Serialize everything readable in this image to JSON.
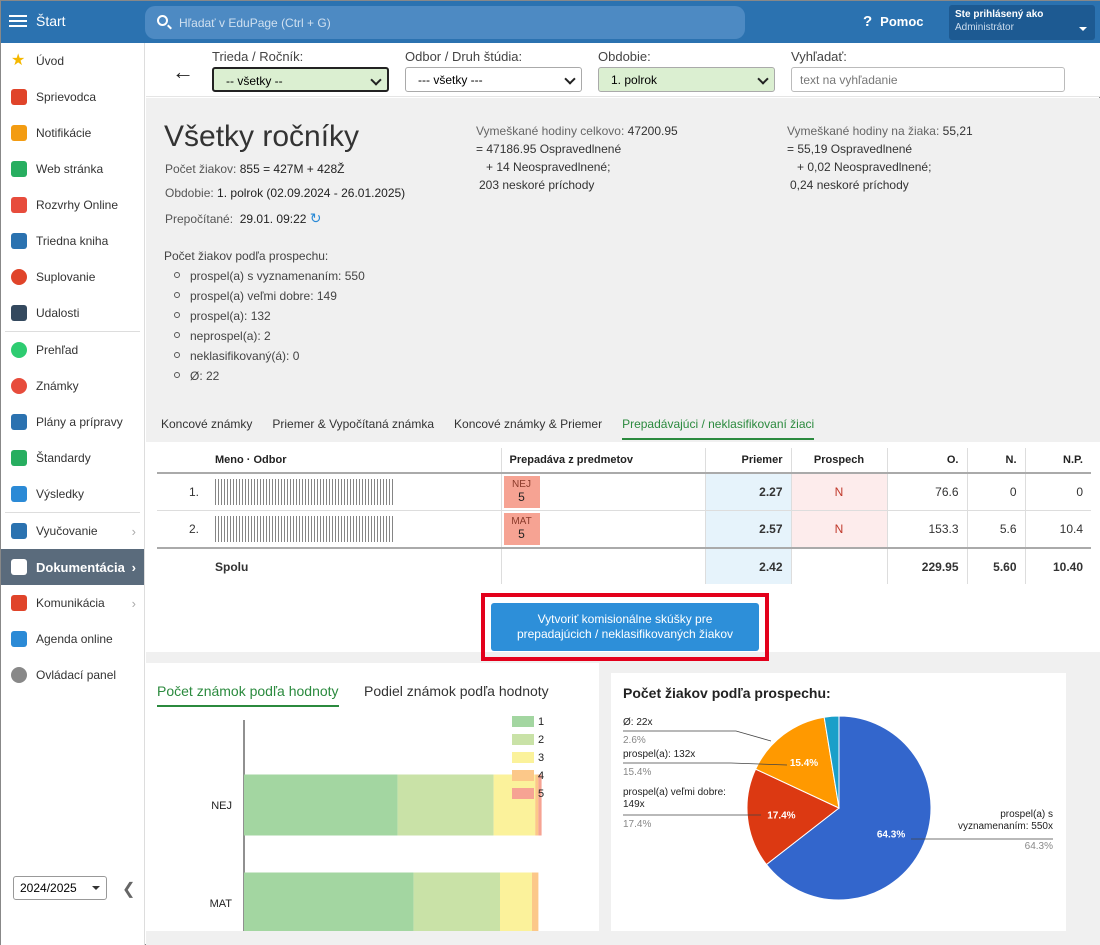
{
  "topbar": {
    "app_title": "Štart",
    "search_placeholder": "Hľadať v EduPage (Ctrl + G)",
    "help_label": "Pomoc",
    "user_line1": "Ste prihlásený ako",
    "user_line2": "Administrátor"
  },
  "sidebar": {
    "items": [
      {
        "label": "Úvod",
        "icon": "star-icon",
        "color": "#f5b800"
      },
      {
        "label": "Sprievodca",
        "icon": "magic-wand-icon",
        "color": "#e0442a"
      },
      {
        "label": "Notifikácie",
        "icon": "envelope-icon",
        "color": "#f39c12"
      },
      {
        "label": "Web stránka",
        "icon": "home-icon",
        "color": "#27ae60"
      },
      {
        "label": "Rozvrhy Online",
        "icon": "timetable-icon",
        "color": "#e74c3c"
      },
      {
        "label": "Triedna kniha",
        "icon": "book-icon",
        "color": "#2b72b0"
      },
      {
        "label": "Suplovanie",
        "icon": "person-icon",
        "color": "#e0442a"
      },
      {
        "label": "Udalosti",
        "icon": "calendar-icon",
        "color": "#34495e"
      },
      {
        "label": "Prehľad",
        "icon": "check-circle-icon",
        "color": "#2ecc71"
      },
      {
        "label": "Známky",
        "icon": "grade-icon",
        "color": "#e74c3c"
      },
      {
        "label": "Plány a prípravy",
        "icon": "briefcase-icon",
        "color": "#2b72b0"
      },
      {
        "label": "Štandardy",
        "icon": "shield-check-icon",
        "color": "#27ae60"
      },
      {
        "label": "Výsledky",
        "icon": "bar-chart-icon",
        "color": "#2b8ad6"
      },
      {
        "label": "Vyučovanie",
        "icon": "open-book-icon",
        "color": "#2b72b0"
      },
      {
        "label": "Dokumentácia",
        "icon": "document-icon",
        "color": "#ffffff"
      },
      {
        "label": "Komunikácia",
        "icon": "chat-icon",
        "color": "#e0442a"
      },
      {
        "label": "Agenda online",
        "icon": "pen-icon",
        "color": "#2b8ad6"
      },
      {
        "label": "Ovládací panel",
        "icon": "gear-icon",
        "color": "#888888"
      }
    ],
    "year": "2024/2025"
  },
  "filters": {
    "class_label": "Trieda / Ročník:",
    "class_value": "-- všetky --",
    "branch_label": "Odbor / Druh štúdia:",
    "branch_value": "--- všetky ---",
    "period_label": "Obdobie:",
    "period_value": "1. polrok",
    "search_label": "Vyhľadať:",
    "search_placeholder": "text na vyhľadanie"
  },
  "summary": {
    "title": "Všetky ročníky",
    "students_label": "Počet žiakov:",
    "students_value": "855 = 427M + 428Ž",
    "period_label": "Obdobie:",
    "period_value": "1. polrok (02.09.2024 - 26.01.2025)",
    "recalc_label": "Prepočítané:",
    "recalc_value": "29.01. 09:22",
    "abs_total_label": "Vymeškané hodiny celkovo:",
    "abs_total_value": "47200.95",
    "abs_total_l2": "= 47186.95 Ospravedlnené",
    "abs_total_l3": "+ 14 Neospravedlnené;",
    "abs_total_l4": "203 neskoré príchody",
    "abs_per_label": "Vymeškané hodiny na žiaka:",
    "abs_per_value": "55,21",
    "abs_per_l2": "= 55,19 Ospravedlnené",
    "abs_per_l3": "+ 0,02 Neospravedlnené;",
    "abs_per_l4": "0,24 neskoré príchody",
    "progress_title": "Počet žiakov podľa prospechu:",
    "progress_items": [
      "prospel(a) s vyznamenaním: 550",
      "prospel(a) veľmi dobre: 149",
      "prospel(a): 132",
      "neprospel(a): 2",
      "neklasifikovaný(á): 0",
      "Ø: 22"
    ]
  },
  "tabs": [
    "Koncové známky",
    "Priemer & Vypočítaná známka",
    "Koncové známky & Priemer",
    "Prepadávajúci / neklasifikovaní žiaci"
  ],
  "table": {
    "headers": {
      "name": "Meno · Odbor",
      "failing": "Prepadáva z predmetov",
      "avg": "Priemer",
      "result": "Prospech",
      "o": "O.",
      "n": "N.",
      "np": "N.P."
    },
    "rows": [
      {
        "num": "1.",
        "subject": "NEJ",
        "grade": "5",
        "avg": "2.27",
        "result": "N",
        "o": "76.6",
        "n": "0",
        "np": "0"
      },
      {
        "num": "2.",
        "subject": "MAT",
        "grade": "5",
        "avg": "2.57",
        "result": "N",
        "o": "153.3",
        "n": "5.6",
        "np": "10.4"
      }
    ],
    "total": {
      "label": "Spolu",
      "avg": "2.42",
      "o": "229.95",
      "n": "5.60",
      "np": "10.40"
    }
  },
  "create_button": {
    "line1": "Vytvoriť komisionálne skúšky pre",
    "line2": "prepadajúcich / neklasifikovaných žiakov"
  },
  "chart_tabs": [
    "Počet známok podľa hodnoty",
    "Podiel známok podľa hodnoty"
  ],
  "chart_data": [
    {
      "type": "bar",
      "orientation": "horizontal",
      "stacked": true,
      "categories": [
        "NEJ",
        "MAT"
      ],
      "series": [
        {
          "name": "1",
          "color": "#a3d6a1",
          "values": [
            48,
            53
          ]
        },
        {
          "name": "2",
          "color": "#c9e2a7",
          "values": [
            30,
            27
          ]
        },
        {
          "name": "3",
          "color": "#fbf29b",
          "values": [
            13,
            10
          ]
        },
        {
          "name": "4",
          "color": "#fcc889",
          "values": [
            1,
            2
          ]
        },
        {
          "name": "5",
          "color": "#f6a393",
          "values": [
            1,
            0
          ]
        }
      ],
      "legend": "top-right"
    },
    {
      "type": "pie",
      "title": "Počet žiakov podľa prospechu:",
      "slices": [
        {
          "label": "prospel(a) s vyznamenaním: 550x",
          "value": 550,
          "pct": "64.3%",
          "color": "#3366cc"
        },
        {
          "label": "prospel(a) veľmi dobre: 149x",
          "value": 149,
          "pct": "17.4%",
          "color": "#dc3912"
        },
        {
          "label": "prospel(a): 132x",
          "value": 132,
          "pct": "15.4%",
          "color": "#ff9900"
        },
        {
          "label": "Ø: 22x",
          "value": 22,
          "pct": "2.6%",
          "color": "#1a9fc9"
        }
      ]
    }
  ]
}
